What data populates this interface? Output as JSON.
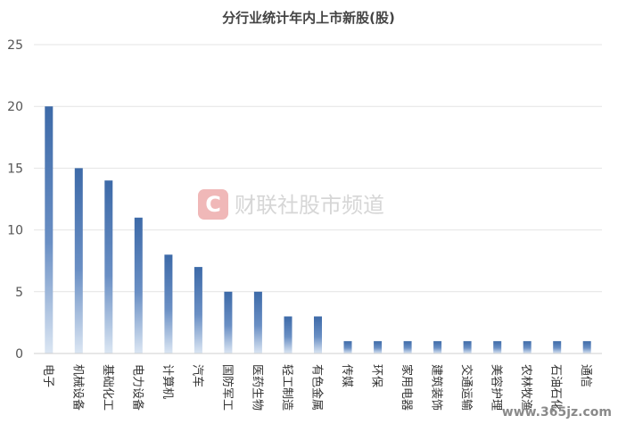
{
  "chart_data": {
    "type": "bar",
    "title": "分行业统计年内上市新股(股)",
    "categories": [
      "电子",
      "机械设备",
      "基础化工",
      "电力设备",
      "计算机",
      "汽车",
      "国防军工",
      "医药生物",
      "轻工制造",
      "有色金属",
      "传媒",
      "环保",
      "家用电器",
      "建筑装饰",
      "交通运输",
      "美容护理",
      "农林牧渔",
      "石油石化",
      "通信"
    ],
    "values": [
      20,
      15,
      14,
      11,
      8,
      7,
      5,
      5,
      3,
      3,
      1,
      1,
      1,
      1,
      1,
      1,
      1,
      1,
      1
    ],
    "ylim": [
      0,
      25
    ],
    "yticks": [
      0,
      5,
      10,
      15,
      20,
      25
    ],
    "grid": true,
    "bar_color_top": "#3d6aa8",
    "bar_color_bottom": "#dbe6f3"
  },
  "watermark": {
    "logo_letter": "C",
    "text": "财联社股市频道",
    "url": "www.365jz.com",
    "logo_color": "#f0b8b8"
  }
}
